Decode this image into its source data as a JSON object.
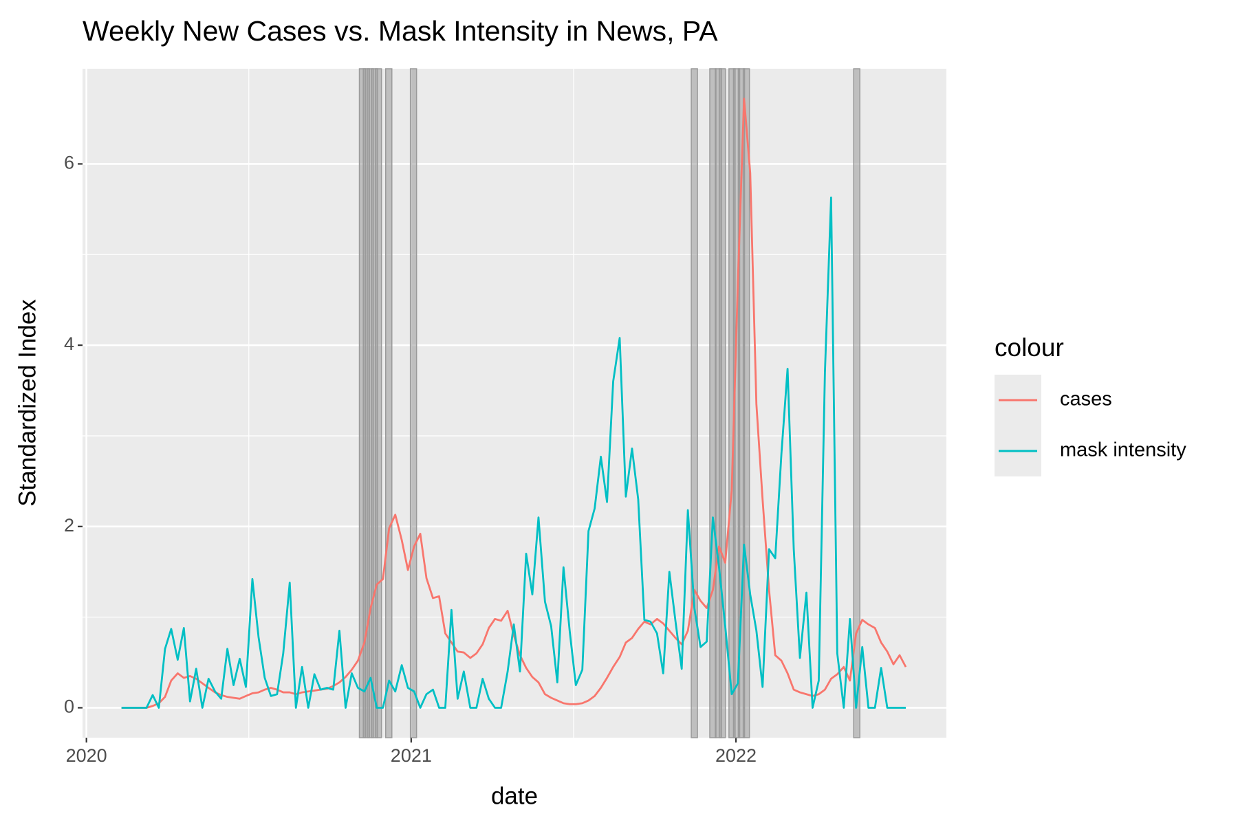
{
  "chart_data": {
    "type": "line",
    "title": "Weekly New Cases vs. Mask Intensity in News, PA",
    "x_label": "date",
    "y_label": "Standardized Index",
    "legend_title": "colour",
    "legend_position": "right",
    "grid": true,
    "xlim": [
      2019.988,
      2022.648
    ],
    "xticks": [
      2020,
      2021,
      2022
    ],
    "ylim": [
      -0.33,
      7.05
    ],
    "yticks": [
      0,
      2,
      4,
      6
    ],
    "x": [
      2020.108,
      2020.127,
      2020.146,
      2020.166,
      2020.185,
      2020.204,
      2020.223,
      2020.242,
      2020.261,
      2020.281,
      2020.3,
      2020.319,
      2020.338,
      2020.357,
      2020.376,
      2020.396,
      2020.415,
      2020.434,
      2020.453,
      2020.472,
      2020.491,
      2020.511,
      2020.53,
      2020.549,
      2020.568,
      2020.587,
      2020.606,
      2020.626,
      2020.645,
      2020.664,
      2020.683,
      2020.702,
      2020.721,
      2020.741,
      2020.76,
      2020.779,
      2020.798,
      2020.817,
      2020.836,
      2020.856,
      2020.875,
      2020.894,
      2020.913,
      2020.932,
      2020.951,
      2020.971,
      2020.99,
      2021.009,
      2021.028,
      2021.047,
      2021.067,
      2021.086,
      2021.105,
      2021.124,
      2021.143,
      2021.162,
      2021.182,
      2021.201,
      2021.22,
      2021.239,
      2021.258,
      2021.277,
      2021.297,
      2021.316,
      2021.335,
      2021.354,
      2021.373,
      2021.392,
      2021.412,
      2021.431,
      2021.45,
      2021.469,
      2021.488,
      2021.507,
      2021.527,
      2021.546,
      2021.565,
      2021.584,
      2021.603,
      2021.622,
      2021.642,
      2021.661,
      2021.68,
      2021.699,
      2021.718,
      2021.737,
      2021.757,
      2021.776,
      2021.795,
      2021.814,
      2021.833,
      2021.852,
      2021.872,
      2021.891,
      2021.91,
      2021.929,
      2021.948,
      2021.967,
      2021.987,
      2022.006,
      2022.025,
      2022.044,
      2022.063,
      2022.082,
      2022.102,
      2022.121,
      2022.14,
      2022.159,
      2022.178,
      2022.197,
      2022.217,
      2022.236,
      2022.255,
      2022.274,
      2022.293,
      2022.312,
      2022.332,
      2022.351,
      2022.37,
      2022.389,
      2022.408,
      2022.428,
      2022.447,
      2022.466,
      2022.485,
      2022.504,
      2022.523
    ],
    "series": [
      {
        "name": "cases",
        "color": "#F8766D",
        "values": [
          0,
          0,
          0,
          0,
          0,
          0.02,
          0.05,
          0.12,
          0.3,
          0.38,
          0.33,
          0.35,
          0.32,
          0.27,
          0.22,
          0.17,
          0.14,
          0.12,
          0.11,
          0.1,
          0.13,
          0.16,
          0.17,
          0.2,
          0.22,
          0.2,
          0.17,
          0.17,
          0.15,
          0.17,
          0.18,
          0.19,
          0.2,
          0.21,
          0.24,
          0.28,
          0.34,
          0.42,
          0.52,
          0.72,
          1.1,
          1.36,
          1.42,
          1.98,
          2.13,
          1.85,
          1.52,
          1.78,
          1.92,
          1.43,
          1.21,
          1.23,
          0.82,
          0.72,
          0.62,
          0.61,
          0.55,
          0.6,
          0.7,
          0.88,
          0.98,
          0.96,
          1.07,
          0.8,
          0.58,
          0.44,
          0.34,
          0.28,
          0.15,
          0.11,
          0.08,
          0.05,
          0.04,
          0.04,
          0.05,
          0.08,
          0.13,
          0.22,
          0.33,
          0.45,
          0.56,
          0.72,
          0.77,
          0.87,
          0.95,
          0.92,
          0.98,
          0.93,
          0.85,
          0.77,
          0.7,
          0.85,
          1.3,
          1.18,
          1.1,
          1.3,
          1.78,
          1.6,
          2.4,
          4.7,
          6.72,
          5.9,
          3.35,
          2.3,
          1.3,
          0.58,
          0.52,
          0.38,
          0.2,
          0.17,
          0.15,
          0.13,
          0.15,
          0.2,
          0.32,
          0.37,
          0.45,
          0.3,
          0.82,
          0.97,
          0.92,
          0.88,
          0.72,
          0.62,
          0.48,
          0.58,
          0.45
        ]
      },
      {
        "name": "mask intensity",
        "color": "#00BFC4",
        "values": [
          0,
          0,
          0,
          0,
          0,
          0.14,
          0,
          0.65,
          0.87,
          0.53,
          0.88,
          0.07,
          0.43,
          0,
          0.32,
          0.18,
          0.1,
          0.65,
          0.25,
          0.54,
          0.23,
          1.42,
          0.78,
          0.33,
          0.13,
          0.15,
          0.6,
          1.38,
          0,
          0.45,
          0,
          0.37,
          0.2,
          0.22,
          0.2,
          0.85,
          0,
          0.38,
          0.22,
          0.18,
          0.33,
          0,
          0,
          0.3,
          0.18,
          0.47,
          0.22,
          0.18,
          0,
          0.15,
          0.2,
          0,
          0,
          1.08,
          0.1,
          0.4,
          0,
          0,
          0.32,
          0.1,
          0,
          0,
          0.4,
          0.92,
          0.4,
          1.7,
          1.25,
          2.1,
          1.17,
          0.9,
          0.28,
          1.55,
          0.85,
          0.25,
          0.42,
          1.95,
          2.2,
          2.77,
          2.27,
          3.6,
          4.08,
          2.33,
          2.86,
          2.3,
          0.97,
          0.95,
          0.82,
          0.38,
          1.5,
          0.95,
          0.43,
          2.18,
          1.1,
          0.67,
          0.73,
          2.1,
          1.55,
          0.9,
          0.15,
          0.27,
          1.8,
          1.25,
          0.85,
          0.23,
          1.75,
          1.65,
          2.8,
          3.74,
          1.75,
          0.55,
          1.27,
          0,
          0.3,
          3.7,
          5.63,
          0.6,
          0,
          0.98,
          0,
          0.67,
          0,
          0,
          0.44,
          0,
          0,
          0,
          0
        ]
      }
    ],
    "shade_color": "#9a9a9a",
    "shaded_x": [
      2020.85,
      2020.862,
      2020.874,
      2020.887,
      2020.899,
      2020.931,
      2021.007,
      2021.872,
      2021.929,
      2021.946,
      2021.958,
      2021.988,
      2022.002,
      2022.017,
      2022.032,
      2022.372
    ]
  }
}
